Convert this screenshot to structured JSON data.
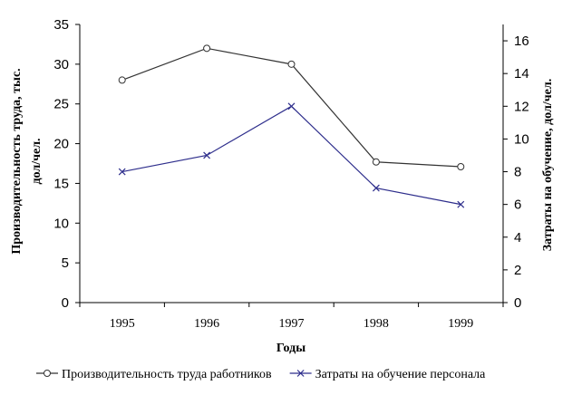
{
  "chart_data": {
    "type": "line",
    "categories": [
      "1995",
      "1996",
      "1997",
      "1998",
      "1999"
    ],
    "xlabel": "Годы",
    "ylabel_left": "Производительность труда, тыс. дол/чел.",
    "ylabel_right": "Затраты на обучение, дол/чел.",
    "ylim_left": [
      0,
      35
    ],
    "ylim_right": [
      0,
      17
    ],
    "yticks_left": [
      0,
      5,
      10,
      15,
      20,
      25,
      30,
      35
    ],
    "yticks_right": [
      0,
      2,
      4,
      6,
      8,
      10,
      12,
      14,
      16
    ],
    "grid": false,
    "legend_position": "bottom",
    "series": [
      {
        "name": "Производительность труда работников",
        "axis": "left",
        "marker": "circle",
        "color": "#333333",
        "values": [
          28,
          32,
          30,
          17.7,
          17.1
        ]
      },
      {
        "name": "Затраты на обучение персонала",
        "axis": "right",
        "marker": "x",
        "color": "#2e2e8c",
        "values": [
          8,
          9,
          12,
          7,
          6
        ]
      }
    ]
  }
}
